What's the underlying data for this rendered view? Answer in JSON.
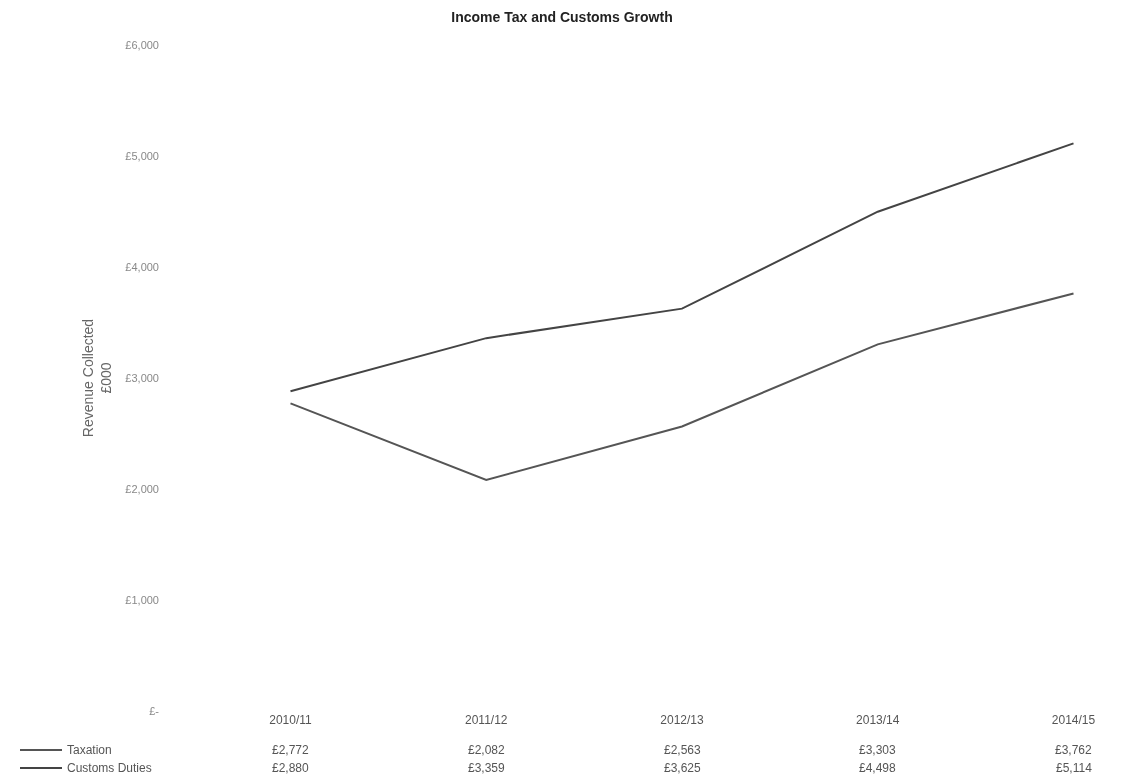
{
  "chart_data": {
    "type": "line",
    "title": "Income Tax and Customs Growth",
    "ylabel": "Revenue Collected\n£000",
    "categories": [
      "2010/11",
      "2011/12",
      "2012/13",
      "2013/14",
      "2014/15"
    ],
    "series": [
      {
        "name": "Taxation",
        "color": "#555555",
        "values": [
          2772,
          2082,
          2563,
          3303,
          3762
        ],
        "value_labels": [
          "£2,772",
          "£2,082",
          "£2,563",
          "£3,303",
          "£3,762"
        ]
      },
      {
        "name": "Customs Duties",
        "color": "#444444",
        "values": [
          2880,
          3359,
          3625,
          4498,
          5114
        ],
        "value_labels": [
          "£2,880",
          "£3,359",
          "£3,625",
          "£4,498",
          "£5,114"
        ]
      }
    ],
    "ylim": [
      0,
      6000
    ],
    "yticks": [
      {
        "value": 0,
        "label": "£-"
      },
      {
        "value": 1000,
        "label": "£1,000"
      },
      {
        "value": 2000,
        "label": "£2,000"
      },
      {
        "value": 3000,
        "label": "£3,000"
      },
      {
        "value": 4000,
        "label": "£4,000"
      },
      {
        "value": 5000,
        "label": "£5,000"
      },
      {
        "value": 6000,
        "label": "£6,000"
      }
    ],
    "legend": "bottom left",
    "marker": "none",
    "line_style": "solid"
  }
}
